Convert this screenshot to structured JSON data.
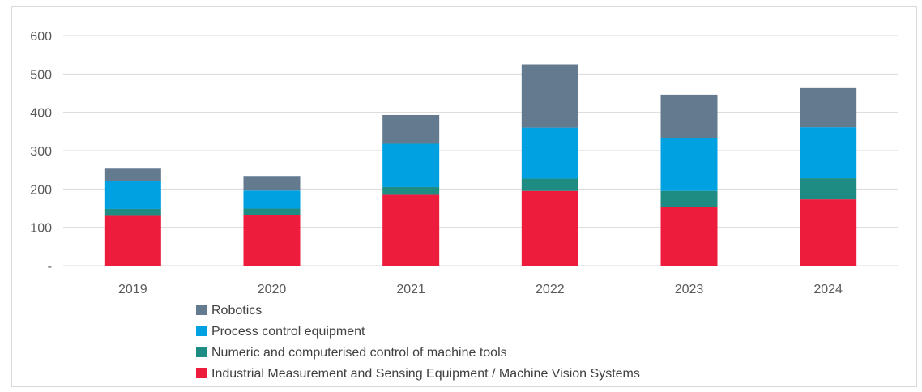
{
  "chart_data": {
    "type": "bar",
    "stacked": true,
    "title": "",
    "xlabel": "",
    "ylabel": "",
    "ylim": [
      0,
      600
    ],
    "y_ticks": [
      {
        "value": 0,
        "label": "-"
      },
      {
        "value": 100,
        "label": "100"
      },
      {
        "value": 200,
        "label": "200"
      },
      {
        "value": 300,
        "label": "300"
      },
      {
        "value": 400,
        "label": "400"
      },
      {
        "value": 500,
        "label": "500"
      },
      {
        "value": 600,
        "label": "600"
      }
    ],
    "grid": true,
    "legend_position": "bottom",
    "categories": [
      "2019",
      "2020",
      "2021",
      "2022",
      "2023",
      "2024"
    ],
    "series": [
      {
        "name": "Industrial Measurement and Sensing Equipment / Machine Vision Systems",
        "color": "#ee1c3c",
        "values": [
          130,
          132,
          185,
          195,
          153,
          173
        ]
      },
      {
        "name": "Numeric and computerised control of machine tools",
        "color": "#1e8c83",
        "values": [
          18,
          17,
          20,
          32,
          42,
          55
        ]
      },
      {
        "name": "Process control equipment",
        "color": "#00a1e0",
        "values": [
          73,
          47,
          113,
          133,
          138,
          133
        ]
      },
      {
        "name": "Robotics",
        "color": "#647a8f",
        "values": [
          32,
          38,
          75,
          165,
          113,
          102
        ]
      }
    ],
    "legend_order": [
      3,
      2,
      1,
      0
    ]
  }
}
